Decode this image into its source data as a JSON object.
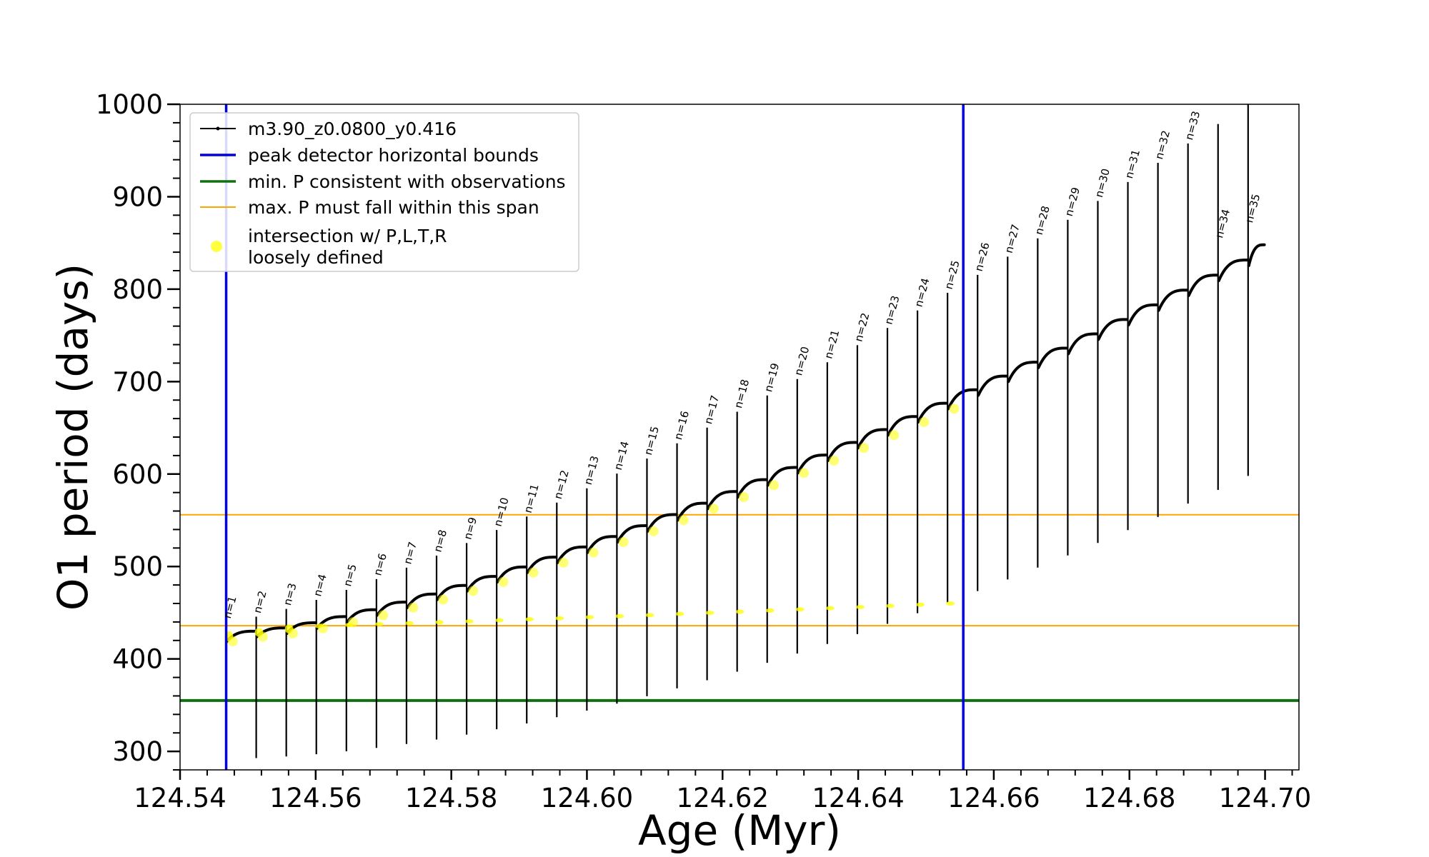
{
  "chart_data": {
    "type": "scatter",
    "title": "",
    "xlabel": "Age (Myr)",
    "ylabel": "O1 period (days)",
    "xlim": [
      124.54,
      124.705
    ],
    "ylim": [
      280,
      1000
    ],
    "xticks": [
      124.54,
      124.56,
      124.58,
      124.6,
      124.62,
      124.64,
      124.66,
      124.68,
      124.7
    ],
    "xtick_labels": [
      "124.54",
      "124.56",
      "124.58",
      "124.60",
      "124.62",
      "124.64",
      "124.66",
      "124.68",
      "124.70"
    ],
    "yticks": [
      300,
      400,
      500,
      600,
      700,
      800,
      900,
      1000
    ],
    "ytick_labels": [
      "300",
      "400",
      "500",
      "600",
      "700",
      "800",
      "900",
      "1000"
    ],
    "grid": false,
    "legend": {
      "position": "upper-left",
      "entries": [
        {
          "label": "m3.90_z0.0800_y0.416",
          "style": "line-marker",
          "color": "#000000"
        },
        {
          "label": "peak detector horizontal bounds",
          "style": "line",
          "color": "#0000dd"
        },
        {
          "label": "min. P consistent with observations",
          "style": "line",
          "color": "#107010"
        },
        {
          "label": "max. P must fall within this span",
          "style": "line",
          "color": "#ffa500"
        },
        {
          "label": "intersection w/ P,L,T,R\nloosely defined",
          "style": "marker",
          "color": "#ffff00"
        }
      ]
    },
    "vertical_lines": [
      {
        "x": 124.5468,
        "color": "#0000dd",
        "series": "peak detector horizontal bounds"
      },
      {
        "x": 124.6555,
        "color": "#0000dd",
        "series": "peak detector horizontal bounds"
      }
    ],
    "horizontal_lines": [
      {
        "y": 355,
        "color": "#107010",
        "series": "min. P consistent with observations"
      },
      {
        "y": 436,
        "color": "#ffa500",
        "series": "max. P must fall within this span"
      },
      {
        "y": 556,
        "color": "#ffa500",
        "series": "max. P must fall within this span"
      }
    ],
    "pulses": {
      "count": 35,
      "first_age": 124.5468,
      "last_age": 124.6975,
      "ceiling_start": 430,
      "ceiling_end": 848,
      "spike_start": 440,
      "spike_end": 1000,
      "trough_start": 292,
      "trough_end": 598,
      "yellow_age_max": 124.6555
    },
    "annotations": [
      {
        "n": 1,
        "text": "n=1"
      },
      {
        "n": 2,
        "text": "n=2"
      },
      {
        "n": 3,
        "text": "n=3"
      },
      {
        "n": 4,
        "text": "n=4"
      },
      {
        "n": 5,
        "text": "n=5"
      },
      {
        "n": 6,
        "text": "n=6"
      },
      {
        "n": 7,
        "text": "n=7"
      },
      {
        "n": 8,
        "text": "n=8"
      },
      {
        "n": 9,
        "text": "n=9"
      },
      {
        "n": 10,
        "text": "n=10"
      },
      {
        "n": 11,
        "text": "n=11"
      },
      {
        "n": 12,
        "text": "n=12"
      },
      {
        "n": 13,
        "text": "n=13"
      },
      {
        "n": 14,
        "text": "n=14"
      },
      {
        "n": 15,
        "text": "n=15"
      },
      {
        "n": 16,
        "text": "n=16"
      },
      {
        "n": 17,
        "text": "n=17"
      },
      {
        "n": 18,
        "text": "n=18"
      },
      {
        "n": 19,
        "text": "n=19"
      },
      {
        "n": 20,
        "text": "n=20"
      },
      {
        "n": 21,
        "text": "n=21"
      },
      {
        "n": 22,
        "text": "n=22"
      },
      {
        "n": 23,
        "text": "n=23"
      },
      {
        "n": 24,
        "text": "n=24"
      },
      {
        "n": 25,
        "text": "n=25"
      },
      {
        "n": 26,
        "text": "n=26"
      },
      {
        "n": 27,
        "text": "n=27"
      },
      {
        "n": 28,
        "text": "n=28"
      },
      {
        "n": 29,
        "text": "n=29"
      },
      {
        "n": 30,
        "text": "n=30"
      },
      {
        "n": 31,
        "text": "n=31"
      },
      {
        "n": 32,
        "text": "n=32"
      },
      {
        "n": 33,
        "text": "n=33"
      },
      {
        "n": 34,
        "text": "n=34"
      },
      {
        "n": 35,
        "text": "n=35"
      }
    ]
  }
}
